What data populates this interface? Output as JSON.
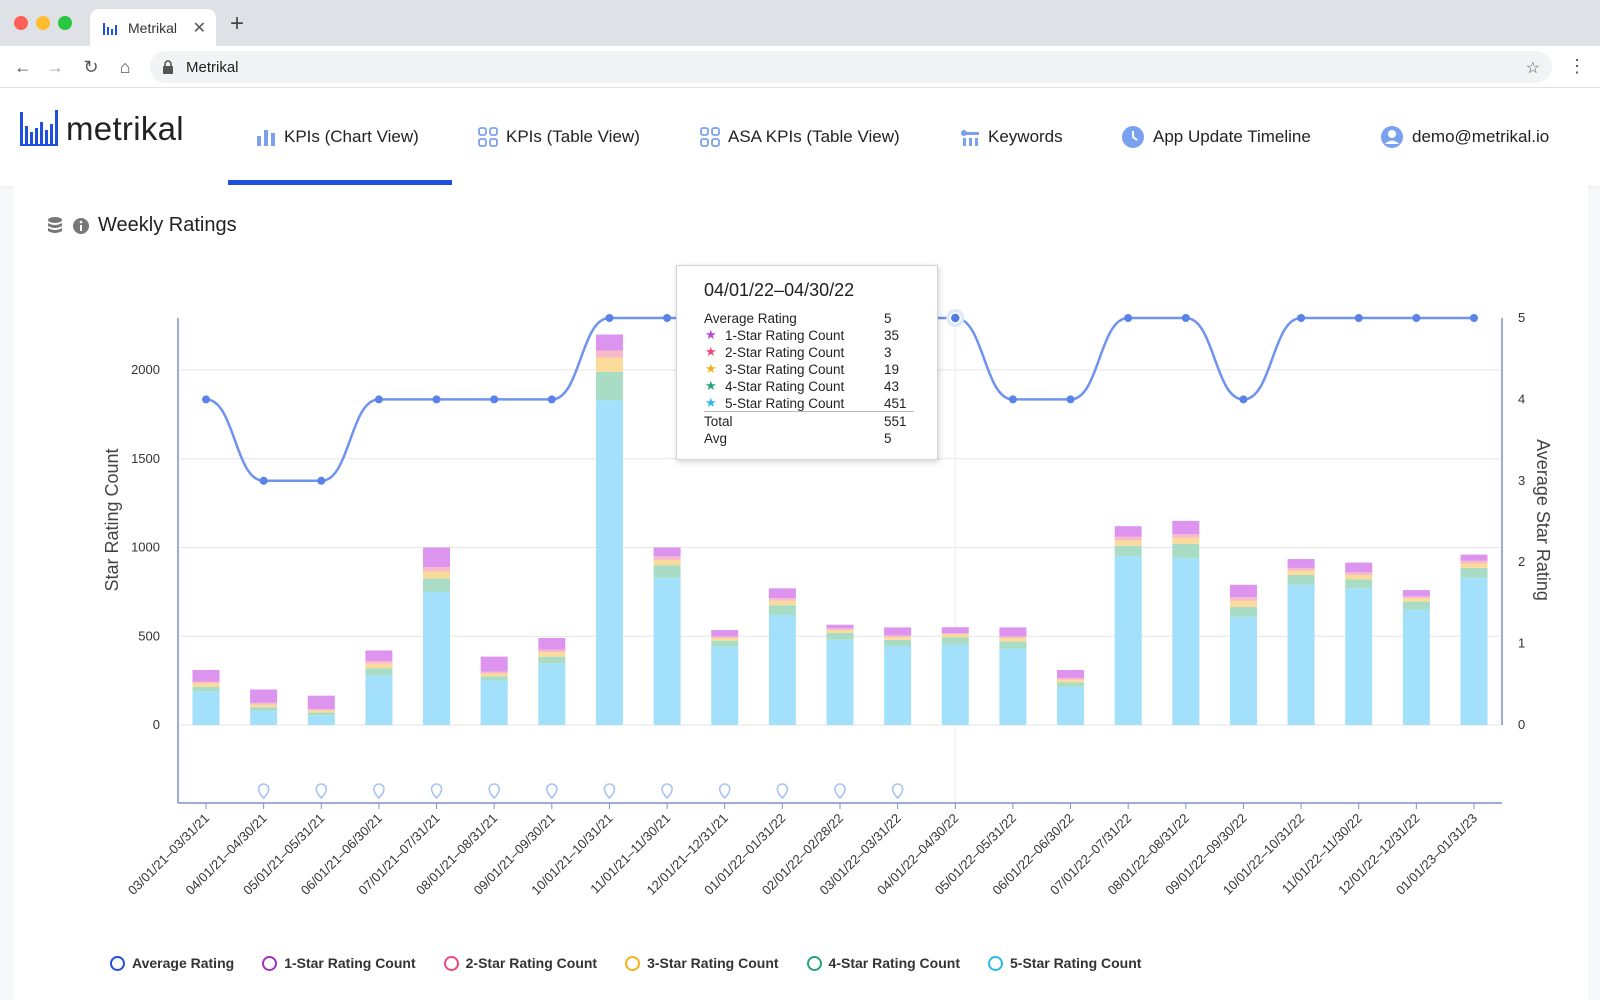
{
  "browser": {
    "tab_title": "Metrikal",
    "tab_close_icon": "close-icon",
    "new_tab_label": "+",
    "address": "Metrikal"
  },
  "app": {
    "logo_text": "metrikal",
    "nav": [
      {
        "label": "KPIs (Chart View)",
        "icon": "bar-chart-icon",
        "active": true
      },
      {
        "label": "KPIs (Table View)",
        "icon": "grid-icon"
      },
      {
        "label": "ASA KPIs (Table View)",
        "icon": "grid-icon"
      },
      {
        "label": "Keywords",
        "icon": "key-icon"
      },
      {
        "label": "App Update Timeline",
        "icon": "clock-icon"
      },
      {
        "label": "demo@metrikal.io",
        "icon": "user-icon"
      }
    ],
    "accent": "#1f4fe0"
  },
  "panel": {
    "title": "Weekly Ratings"
  },
  "tooltip": {
    "title": "04/01/22–04/30/22",
    "rows": [
      {
        "label": "Average Rating",
        "value": "5"
      },
      {
        "label": "1-Star Rating Count",
        "value": "35",
        "color": "#b04ad8"
      },
      {
        "label": "2-Star Rating Count",
        "value": "3",
        "color": "#f0487a"
      },
      {
        "label": "3-Star Rating Count",
        "value": "19",
        "color": "#f3b21b"
      },
      {
        "label": "4-Star Rating Count",
        "value": "43",
        "color": "#26a37a"
      },
      {
        "label": "5-Star Rating Count",
        "value": "451",
        "color": "#2ab9ef"
      }
    ],
    "total_label": "Total",
    "total_value": "551",
    "avg_label": "Avg",
    "avg_value": "5"
  },
  "chart_data": {
    "type": "bar",
    "stacked": true,
    "ylabel": "Star Rating Count",
    "y2label": "Average Star Rating",
    "ylim": [
      0,
      2300
    ],
    "y_ticks": [
      0,
      500,
      1000,
      1500,
      2000
    ],
    "y2lim": [
      0,
      5
    ],
    "y2_ticks": [
      0,
      1,
      2,
      3,
      4,
      5
    ],
    "categories": [
      "03/01/21–03/31/21",
      "04/01/21–04/30/21",
      "05/01/21–05/31/21",
      "06/01/21–06/30/21",
      "07/01/21–07/31/21",
      "08/01/21–08/31/21",
      "09/01/21–09/30/21",
      "10/01/21–10/31/21",
      "11/01/21–11/30/21",
      "12/01/21–12/31/21",
      "01/01/22–01/31/22",
      "02/01/22–02/28/22",
      "03/01/22–03/31/22",
      "04/01/22–04/30/22",
      "05/01/22–05/31/22",
      "06/01/22–06/30/22",
      "07/01/22–07/31/22",
      "08/01/22–08/31/22",
      "09/01/22–09/30/22",
      "10/01/22–10/31/22",
      "11/01/22–11/30/22",
      "12/01/22–12/31/22",
      "01/01/23–01/31/23"
    ],
    "series": [
      {
        "name": "5-Star Rating Count",
        "color": "#a3e0fb",
        "values": [
          190,
          80,
          55,
          280,
          750,
          250,
          345,
          1830,
          830,
          440,
          620,
          480,
          445,
          451,
          430,
          215,
          950,
          940,
          610,
          790,
          770,
          650,
          830
        ]
      },
      {
        "name": "4-Star Rating Count",
        "color": "#a8dcc4",
        "values": [
          25,
          20,
          15,
          40,
          75,
          25,
          40,
          160,
          70,
          35,
          55,
          40,
          35,
          43,
          40,
          25,
          60,
          80,
          55,
          55,
          50,
          45,
          55
        ]
      },
      {
        "name": "3-Star Rating Count",
        "color": "#fbdb9a",
        "values": [
          20,
          15,
          12,
          25,
          40,
          15,
          25,
          80,
          30,
          15,
          25,
          15,
          15,
          19,
          20,
          15,
          30,
          35,
          35,
          25,
          25,
          20,
          25
        ]
      },
      {
        "name": "2-Star Rating Count",
        "color": "#f8b9c9",
        "values": [
          10,
          10,
          8,
          15,
          25,
          10,
          15,
          40,
          20,
          10,
          15,
          10,
          10,
          3,
          10,
          10,
          20,
          20,
          20,
          15,
          15,
          10,
          15
        ]
      },
      {
        "name": "1-Star Rating Count",
        "color": "#dc94ee",
        "values": [
          65,
          75,
          75,
          60,
          110,
          85,
          65,
          90,
          50,
          35,
          55,
          20,
          45,
          35,
          50,
          45,
          60,
          75,
          70,
          50,
          55,
          35,
          35
        ]
      }
    ],
    "line": {
      "name": "Average Rating",
      "color": "#6f93ee",
      "values": [
        4,
        3,
        3,
        4,
        4,
        4,
        4,
        5,
        5,
        5,
        5,
        5,
        5,
        5,
        4,
        4,
        5,
        5,
        4,
        5,
        5,
        5,
        5
      ]
    },
    "highlight_index": 13,
    "annotation_indices": [
      1,
      2,
      3,
      4,
      5,
      6,
      7,
      8,
      9,
      10,
      11,
      12
    ],
    "legend": [
      {
        "label": "Average Rating",
        "color": "#1f4fe0"
      },
      {
        "label": "1-Star Rating Count",
        "color": "#a42fc0"
      },
      {
        "label": "2-Star Rating Count",
        "color": "#f0487a"
      },
      {
        "label": "3-Star Rating Count",
        "color": "#f3b21b"
      },
      {
        "label": "4-Star Rating Count",
        "color": "#26a37a"
      },
      {
        "label": "5-Star Rating Count",
        "color": "#2ab9ef"
      }
    ],
    "legend_position": "bottom"
  }
}
